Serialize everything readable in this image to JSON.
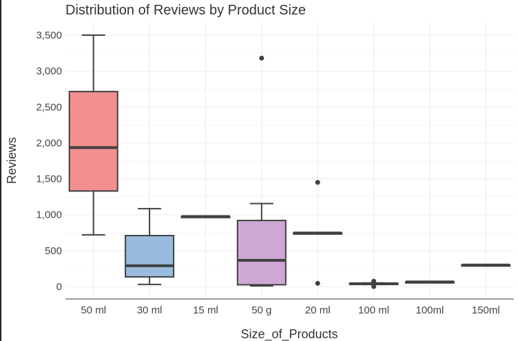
{
  "chart_data": {
    "type": "box",
    "title": "Distribution of Reviews by Product Size",
    "xlabel": "Size_of_Products",
    "ylabel": "Reviews",
    "ylim": [
      -180,
      3650
    ],
    "yticks": [
      0,
      500,
      1000,
      1500,
      2000,
      2500,
      3000,
      3500
    ],
    "ytick_labels": [
      "0",
      "500",
      "1,000",
      "1,500",
      "2,000",
      "2,500",
      "3,000",
      "3,500"
    ],
    "grid": true,
    "legend": "none",
    "categories": [
      "50 ml",
      "30 ml",
      "15 ml",
      "50 g",
      "20 ml",
      "100 ml",
      "100ml",
      "150ml"
    ],
    "boxes": [
      {
        "category": "50 ml",
        "min": 720,
        "q1": 1330,
        "median": 1935,
        "q3": 2715,
        "max": 3500,
        "outliers": [],
        "color": "#F08080"
      },
      {
        "category": "30 ml",
        "min": 30,
        "q1": 135,
        "median": 290,
        "q3": 710,
        "max": 1085,
        "outliers": [],
        "color": "#8BB3D9"
      },
      {
        "category": "15 ml",
        "min": 975,
        "q1": 975,
        "median": 975,
        "q3": 975,
        "max": 975,
        "outliers": [],
        "color": "#B8E0A8"
      },
      {
        "category": "50 g",
        "min": 10,
        "q1": 25,
        "median": 365,
        "q3": 920,
        "max": 1155,
        "outliers": [
          3180
        ],
        "color": "#C89BCF"
      },
      {
        "category": "20 ml",
        "min": 745,
        "q1": 745,
        "median": 745,
        "q3": 745,
        "max": 745,
        "outliers": [
          45,
          1450
        ],
        "color": "#F5B971"
      },
      {
        "category": "100 ml",
        "min": 30,
        "q1": 35,
        "median": 40,
        "q3": 45,
        "max": 50,
        "outliers": [
          0,
          75
        ],
        "color": "#FFF59D"
      },
      {
        "category": "100ml",
        "min": 65,
        "q1": 65,
        "median": 65,
        "q3": 65,
        "max": 65,
        "outliers": [],
        "color": "#D2B48C"
      },
      {
        "category": "150ml",
        "min": 300,
        "q1": 300,
        "median": 300,
        "q3": 300,
        "max": 300,
        "outliers": [],
        "color": "#F4B6D2"
      }
    ]
  }
}
